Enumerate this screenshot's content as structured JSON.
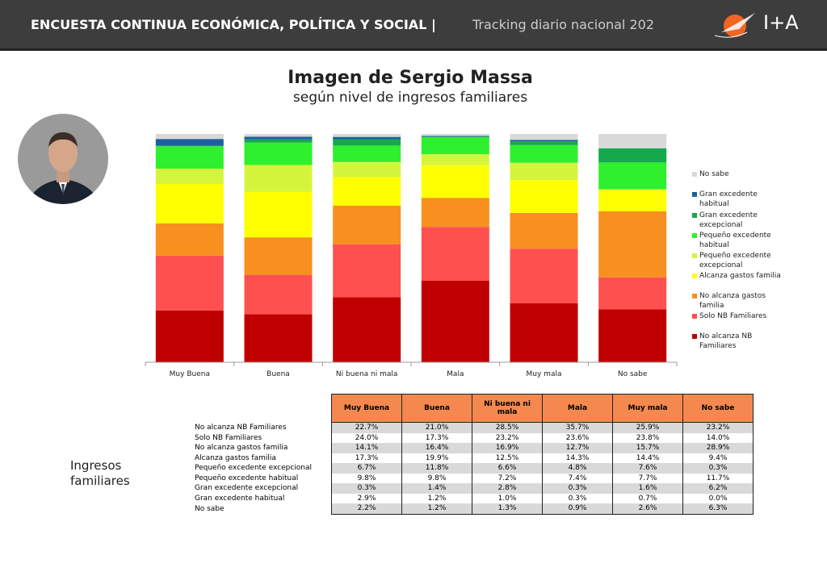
{
  "header": {
    "title": "ENCUESTA CONTINUA ECONÓMICA, POLÍTICA Y SOCIAL |",
    "subtitle": "Tracking diario nacional 202",
    "logo": "I+A"
  },
  "chart_data": {
    "type": "stacked_bar",
    "title": "Imagen de Sergio Massa",
    "subtitle": "según nivel de ingresos familiares",
    "categories": [
      "Muy Buena",
      "Buena",
      "Ni buena ni mala",
      "Mala",
      "Muy mala",
      "No sabe"
    ],
    "ylim": [
      0,
      100
    ],
    "series": [
      {
        "name": "No alcanza NB Familiares",
        "color": "#c00000",
        "values": [
          22.7,
          21,
          28.5,
          35.7,
          25.9,
          23.2
        ],
        "value_labels": [
          "22.7%",
          "21.0%",
          "28.5%",
          "35.7%",
          "25.9%",
          "23.2%"
        ]
      },
      {
        "name": "Solo NB Familiares",
        "color": "#ff5050",
        "values": [
          24,
          17.3,
          23.2,
          23.6,
          23.8,
          14
        ],
        "value_labels": [
          "24.0%",
          "17.3%",
          "23.2%",
          "23.6%",
          "23.8%",
          "14.0%"
        ]
      },
      {
        "name": "No alcanza gastos familia",
        "color": "#f7901e",
        "values": [
          14.1,
          16.4,
          16.9,
          12.7,
          15.7,
          28.9
        ],
        "value_labels": [
          "14.1%",
          "16.4%",
          "16.9%",
          "12.7%",
          "15.7%",
          "28.9%"
        ]
      },
      {
        "name": "Alcanza gastos familia",
        "color": "#ffff00",
        "values": [
          17.3,
          19.9,
          12.5,
          14.3,
          14.4,
          9.4
        ],
        "value_labels": [
          "17.3%",
          "19.9%",
          "12.5%",
          "14.3%",
          "14.4%",
          "9.4%"
        ]
      },
      {
        "name": "Pequeño excedente excepcional",
        "color": "#d4f53c",
        "values": [
          6.7,
          11.8,
          6.6,
          4.8,
          7.6,
          0.3
        ],
        "value_labels": [
          "6.7%",
          "11.8%",
          "6.6%",
          "4.8%",
          "7.6%",
          "0.3%"
        ]
      },
      {
        "name": "Pequeño excedente habitual",
        "color": "#2ef02e",
        "values": [
          9.8,
          9.8,
          7.2,
          7.4,
          7.7,
          11.7
        ],
        "value_labels": [
          "9.8%",
          "9.8%",
          "7.2%",
          "7.4%",
          "7.7%",
          "11.7%"
        ]
      },
      {
        "name": "Gran excedente excepcional",
        "color": "#16a84c",
        "values": [
          0.3,
          1.4,
          2.8,
          0.3,
          1.6,
          6.2
        ],
        "value_labels": [
          "0.3%",
          "1.4%",
          "2.8%",
          "0.3%",
          "1.6%",
          "6.2%"
        ]
      },
      {
        "name": "Gran excedente habitual",
        "color": "#1f5f9e",
        "values": [
          2.9,
          1.2,
          1,
          0.3,
          0.7,
          0
        ],
        "value_labels": [
          "2.9%",
          "1.2%",
          "1.0%",
          "0.3%",
          "0.7%",
          "0.0%"
        ]
      },
      {
        "name": "No sabe",
        "color": "#d9d9d9",
        "values": [
          2.2,
          1.2,
          1.3,
          0.9,
          2.6,
          6.3
        ],
        "value_labels": [
          "2.2%",
          "1.2%",
          "1.3%",
          "0.9%",
          "2.6%",
          "6.3%"
        ]
      }
    ]
  },
  "table_label": "Ingresos familiares"
}
